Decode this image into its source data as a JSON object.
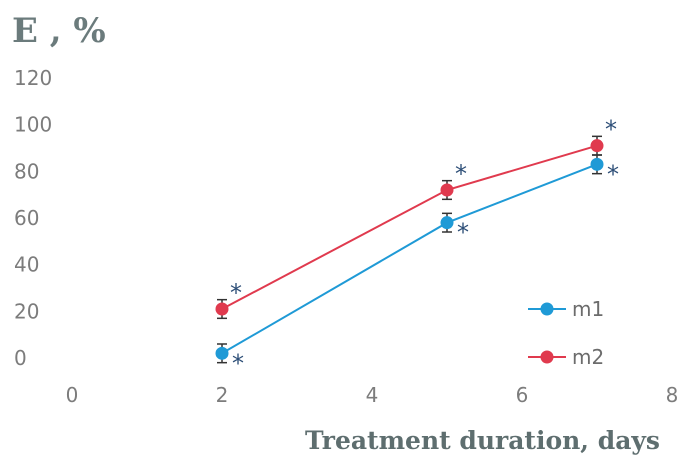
{
  "chart_data": {
    "type": "line",
    "ylabel": "E , %",
    "xlabel": "Treatment duration, days",
    "xlim": [
      0,
      8
    ],
    "ylim": [
      0,
      120
    ],
    "x_ticks": [
      "0",
      "2",
      "4",
      "6",
      "8"
    ],
    "y_ticks": [
      "0",
      "20",
      "40",
      "60",
      "80",
      "100",
      "120"
    ],
    "grid": false,
    "legend_position": "bottom-right",
    "series": [
      {
        "name": "m1",
        "color": "#1f9ad6",
        "x": [
          2,
          5,
          7
        ],
        "y": [
          2,
          58,
          83
        ],
        "error": [
          4,
          4,
          4
        ],
        "significance": [
          "*",
          "*",
          "*"
        ]
      },
      {
        "name": "m2",
        "color": "#e03a4e",
        "x": [
          2,
          5,
          7
        ],
        "y": [
          21,
          72,
          91
        ],
        "error": [
          4,
          4,
          4
        ],
        "significance": [
          "*",
          "*",
          "*"
        ]
      }
    ]
  }
}
